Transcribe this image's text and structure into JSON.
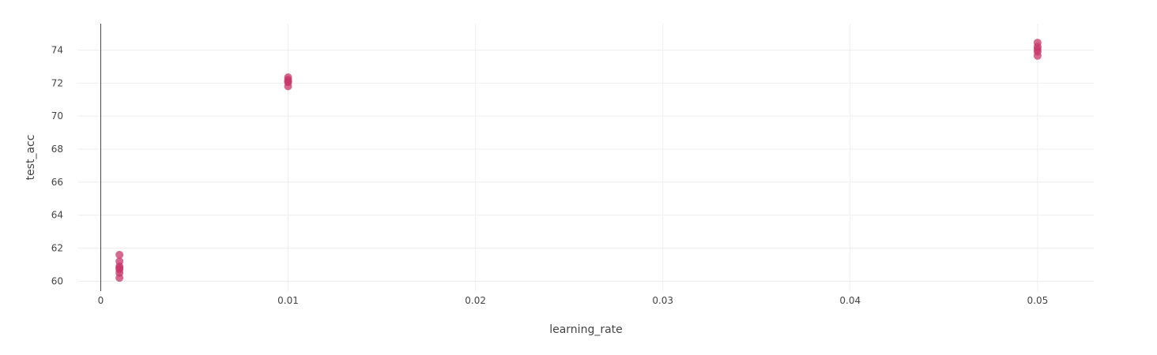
{
  "chart_data": {
    "type": "scatter",
    "title": "",
    "xlabel": "learning_rate",
    "ylabel": "test_acc",
    "xlim": [
      -0.0012,
      0.053
    ],
    "ylim": [
      59.4,
      75.6
    ],
    "xticks": [
      0,
      0.01,
      0.02,
      0.03,
      0.04,
      0.05
    ],
    "xtick_labels": [
      "0",
      "0.01",
      "0.02",
      "0.03",
      "0.04",
      "0.05"
    ],
    "yticks": [
      60,
      62,
      64,
      66,
      68,
      70,
      72,
      74
    ],
    "ytick_labels": [
      "60",
      "62",
      "64",
      "66",
      "68",
      "70",
      "72",
      "74"
    ],
    "grid": true,
    "legend": "none",
    "marker_color": "#c8376a",
    "series": [
      {
        "x": [
          0.001,
          0.001,
          0.001,
          0.001,
          0.001,
          0.001,
          0.001,
          0.01,
          0.01,
          0.01,
          0.01,
          0.01,
          0.05,
          0.05,
          0.05,
          0.05,
          0.05
        ],
        "y": [
          61.6,
          61.2,
          60.9,
          60.8,
          60.7,
          60.5,
          60.2,
          72.35,
          72.2,
          72.1,
          72.05,
          71.8,
          74.45,
          74.2,
          74.05,
          73.9,
          73.65
        ]
      }
    ]
  }
}
